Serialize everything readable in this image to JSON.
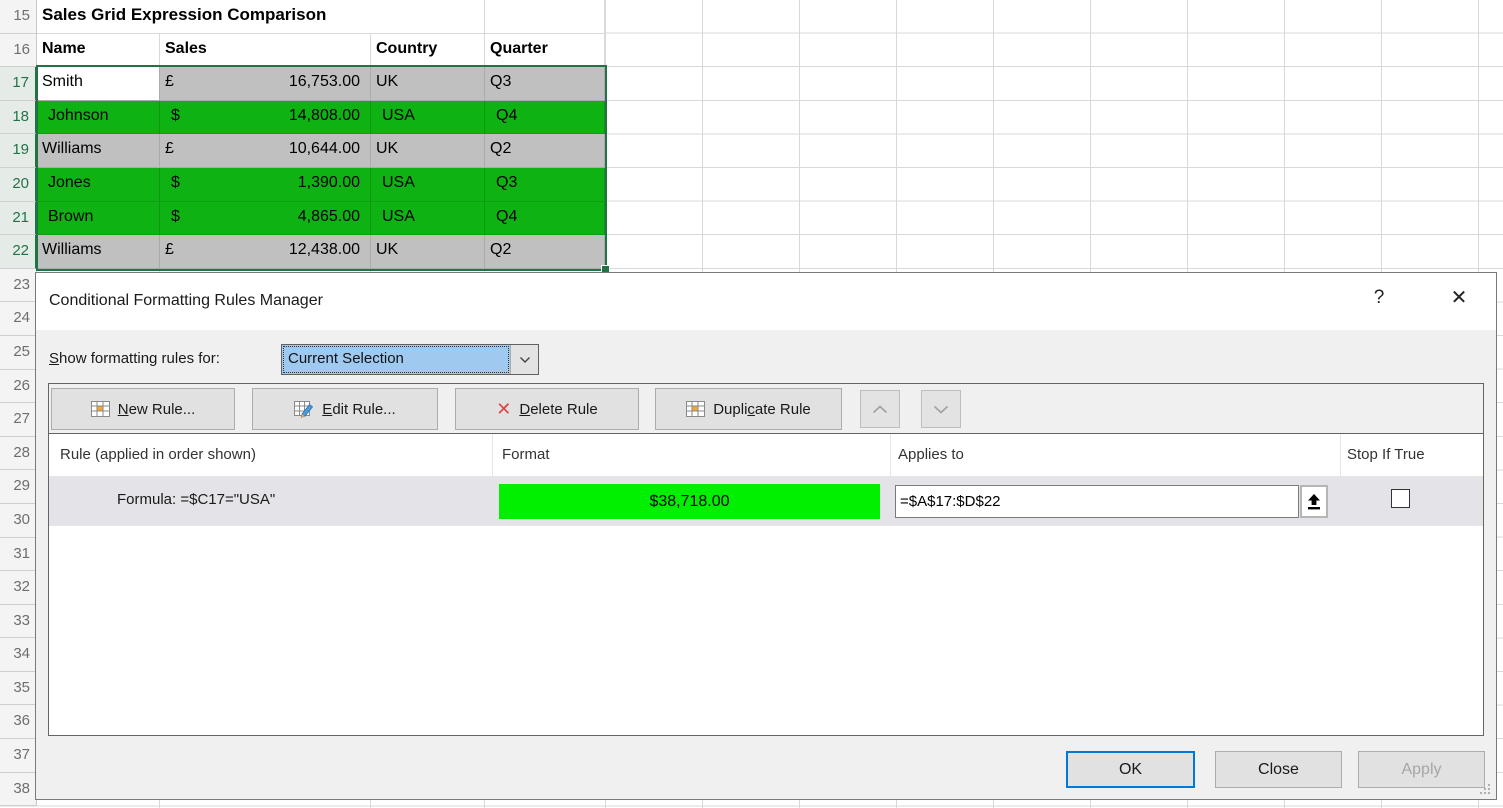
{
  "sheet": {
    "title": "Sales Grid Expression Comparison",
    "headers": {
      "name": "Name",
      "sales": "Sales",
      "country": "Country",
      "quarter": "Quarter"
    },
    "rows": [
      {
        "name": "Smith",
        "cur": "£",
        "amt": "16,753.00",
        "country": "UK",
        "q": "Q3"
      },
      {
        "name": "Johnson",
        "cur": "$",
        "amt": "14,808.00",
        "country": "USA",
        "q": "Q4"
      },
      {
        "name": "Williams",
        "cur": "£",
        "amt": "10,644.00",
        "country": "UK",
        "q": "Q2"
      },
      {
        "name": "Jones",
        "cur": "$",
        "amt": "1,390.00",
        "country": "USA",
        "q": "Q3"
      },
      {
        "name": "Brown",
        "cur": "$",
        "amt": "4,865.00",
        "country": "USA",
        "q": "Q4"
      },
      {
        "name": "Williams",
        "cur": "£",
        "amt": "12,438.00",
        "country": "UK",
        "q": "Q2"
      }
    ],
    "row_headers": [
      {
        "n": "15",
        "sel": false
      },
      {
        "n": "16",
        "sel": false
      },
      {
        "n": "17",
        "sel": true
      },
      {
        "n": "18",
        "sel": true
      },
      {
        "n": "19",
        "sel": true
      },
      {
        "n": "20",
        "sel": true
      },
      {
        "n": "21",
        "sel": true
      },
      {
        "n": "22",
        "sel": true
      },
      {
        "n": "23",
        "sel": false
      },
      {
        "n": "24",
        "sel": false
      },
      {
        "n": "25",
        "sel": false
      },
      {
        "n": "26",
        "sel": false
      },
      {
        "n": "27",
        "sel": false
      },
      {
        "n": "28",
        "sel": false
      },
      {
        "n": "29",
        "sel": false
      },
      {
        "n": "30",
        "sel": false
      },
      {
        "n": "31",
        "sel": false
      },
      {
        "n": "32",
        "sel": false
      },
      {
        "n": "33",
        "sel": false
      },
      {
        "n": "34",
        "sel": false
      },
      {
        "n": "35",
        "sel": false
      },
      {
        "n": "36",
        "sel": false
      },
      {
        "n": "37",
        "sel": false
      },
      {
        "n": "38",
        "sel": false
      }
    ]
  },
  "dialog": {
    "title": "Conditional Formatting Rules Manager",
    "help_glyph": "?",
    "close_glyph": "✕",
    "show_label": {
      "u": "S",
      "rest": "how formatting rules for:"
    },
    "combo_value": "Current Selection",
    "toolbar": {
      "new_rule": {
        "pre": "",
        "u": "N",
        "rest": "ew Rule..."
      },
      "edit_rule": {
        "pre": "",
        "u": "E",
        "rest": "dit Rule..."
      },
      "delete_rule": {
        "pre": "",
        "u": "D",
        "rest": "elete Rule"
      },
      "duplicate_rule": {
        "pre": "Dupli",
        "u": "c",
        "rest": "ate Rule"
      },
      "delete_glyph": "✕"
    },
    "list_headers": {
      "rule": "Rule (applied in order shown)",
      "format": "Format",
      "applies": "Applies to",
      "stop": "Stop If True"
    },
    "rule": {
      "text": "Formula: =$C17=\"USA\"",
      "format_preview": "$38,718.00",
      "applies_to": "=$A$17:$D$22",
      "stop_if_true": false
    },
    "buttons": {
      "ok": "OK",
      "close": "Close",
      "apply": "Apply"
    }
  },
  "colors": {
    "selection_green": "#217346",
    "conditional_fill_green": "#0EB212",
    "preview_green": "#00F000",
    "selection_gray": "#C0C0C0",
    "combo_highlight": "#9FC9EF",
    "ok_border_blue": "#0078D4",
    "delete_red": "#E04343"
  }
}
